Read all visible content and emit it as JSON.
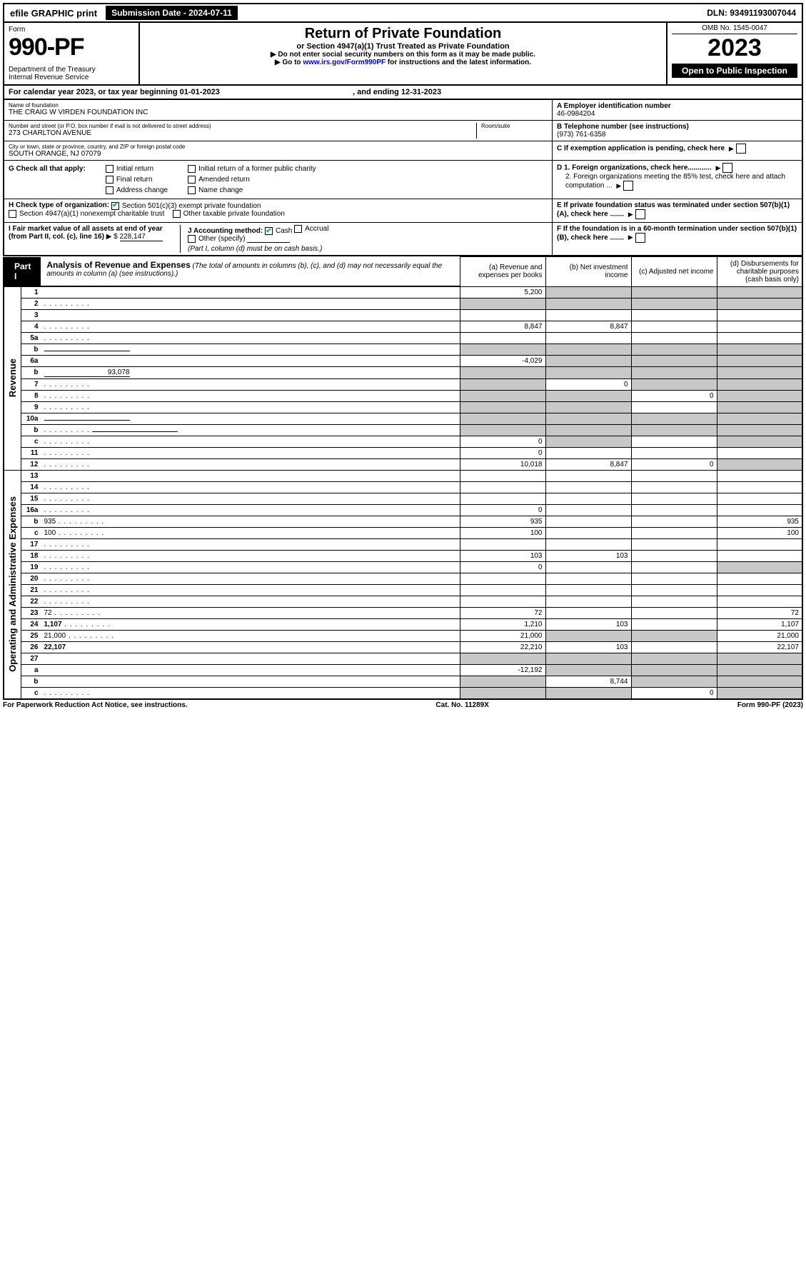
{
  "top": {
    "efile": "efile GRAPHIC print",
    "sub_date": "Submission Date - 2024-07-11",
    "dln": "DLN: 93491193007044"
  },
  "hdr": {
    "form_label": "Form",
    "form_num": "990-PF",
    "dept": "Department of the Treasury\nInternal Revenue Service",
    "title": "Return of Private Foundation",
    "subtitle": "or Section 4947(a)(1) Trust Treated as Private Foundation",
    "note1": "▶ Do not enter social security numbers on this form as it may be made public.",
    "note2": "▶ Go to www.irs.gov/Form990PF for instructions and the latest information.",
    "link": "www.irs.gov/Form990PF",
    "omb": "OMB No. 1545-0047",
    "year": "2023",
    "open": "Open to Public Inspection"
  },
  "cal": {
    "text": "For calendar year 2023, or tax year beginning 01-01-2023",
    "end": ", and ending 12-31-2023"
  },
  "info": {
    "name_label": "Name of foundation",
    "name": "THE CRAIG W VIRDEN FOUNDATION INC",
    "addr_label": "Number and street (or P.O. box number if mail is not delivered to street address)",
    "addr": "273 CHARLTON AVENUE",
    "room_label": "Room/suite",
    "city_label": "City or town, state or province, country, and ZIP or foreign postal code",
    "city": "SOUTH ORANGE, NJ 07079",
    "ein_label": "A Employer identification number",
    "ein": "46-0984204",
    "tel_label": "B Telephone number (see instructions)",
    "tel": "(973) 761-6358",
    "c_label": "C If exemption application is pending, check here",
    "d1": "D 1. Foreign organizations, check here............",
    "d2": "2. Foreign organizations meeting the 85% test, check here and attach computation ...",
    "e": "E If private foundation status was terminated under section 507(b)(1)(A), check here .......",
    "f": "F If the foundation is in a 60-month termination under section 507(b)(1)(B), check here .......",
    "g_label": "G Check all that apply:",
    "g_opts": [
      "Initial return",
      "Final return",
      "Address change",
      "Initial return of a former public charity",
      "Amended return",
      "Name change"
    ],
    "h_label": "H Check type of organization:",
    "h_opt1": "Section 501(c)(3) exempt private foundation",
    "h_opt2": "Section 4947(a)(1) nonexempt charitable trust",
    "h_opt3": "Other taxable private foundation",
    "i_label": "I Fair market value of all assets at end of year (from Part II, col. (c), line 16)",
    "i_val": "228,147",
    "j_label": "J Accounting method:",
    "j_cash": "Cash",
    "j_accrual": "Accrual",
    "j_other": "Other (specify)",
    "j_note": "(Part I, column (d) must be on cash basis.)"
  },
  "part1": {
    "tab": "Part I",
    "title": "Analysis of Revenue and Expenses",
    "title_note": "(The total of amounts in columns (b), (c), and (d) may not necessarily equal the amounts in column (a) (see instructions).)",
    "col_a": "(a) Revenue and expenses per books",
    "col_b": "(b) Net investment income",
    "col_c": "(c) Adjusted net income",
    "col_d": "(d) Disbursements for charitable purposes (cash basis only)",
    "side_rev": "Revenue",
    "side_exp": "Operating and Administrative Expenses"
  },
  "rows": [
    {
      "n": "1",
      "d": "",
      "a": "5,200",
      "b": "",
      "c": "",
      "sb": true,
      "sc": true,
      "sd": true
    },
    {
      "n": "2",
      "d": "",
      "a": "",
      "b": "",
      "c": "",
      "sa": true,
      "sb": true,
      "sc": true,
      "sd": true,
      "dots": true
    },
    {
      "n": "3",
      "d": "",
      "a": "",
      "b": "",
      "c": ""
    },
    {
      "n": "4",
      "d": "",
      "a": "8,847",
      "b": "8,847",
      "c": "",
      "dots": true
    },
    {
      "n": "5a",
      "d": "",
      "a": "",
      "b": "",
      "c": "",
      "dots": true
    },
    {
      "n": "b",
      "d": "",
      "a": "",
      "b": "",
      "c": "",
      "sa": true,
      "sb": true,
      "sc": true,
      "sd": true,
      "inline": true
    },
    {
      "n": "6a",
      "d": "",
      "a": "-4,029",
      "b": "",
      "c": "",
      "sb": true,
      "sc": true,
      "sd": true
    },
    {
      "n": "b",
      "d": "",
      "a": "",
      "b": "",
      "c": "",
      "sa": true,
      "sb": true,
      "sc": true,
      "sd": true,
      "inline": true,
      "inline_val": "93,078"
    },
    {
      "n": "7",
      "d": "",
      "a": "",
      "b": "0",
      "c": "",
      "sa": true,
      "sc": true,
      "sd": true,
      "dots": true
    },
    {
      "n": "8",
      "d": "",
      "a": "",
      "b": "",
      "c": "0",
      "sa": true,
      "sb": true,
      "sd": true,
      "dots": true
    },
    {
      "n": "9",
      "d": "",
      "a": "",
      "b": "",
      "c": "",
      "sa": true,
      "sb": true,
      "sd": true,
      "dots": true
    },
    {
      "n": "10a",
      "d": "",
      "a": "",
      "b": "",
      "c": "",
      "sa": true,
      "sb": true,
      "sc": true,
      "sd": true,
      "inline": true
    },
    {
      "n": "b",
      "d": "",
      "a": "",
      "b": "",
      "c": "",
      "sa": true,
      "sb": true,
      "sc": true,
      "sd": true,
      "inline": true,
      "dots": true
    },
    {
      "n": "c",
      "d": "",
      "a": "0",
      "b": "",
      "c": "",
      "sb": true,
      "sd": true,
      "dots": true
    },
    {
      "n": "11",
      "d": "",
      "a": "0",
      "b": "",
      "c": "",
      "dots": true
    },
    {
      "n": "12",
      "d": "",
      "a": "10,018",
      "b": "8,847",
      "c": "0",
      "bold": true,
      "sd": true,
      "dots": true
    },
    {
      "n": "13",
      "d": "",
      "a": "",
      "b": "",
      "c": ""
    },
    {
      "n": "14",
      "d": "",
      "a": "",
      "b": "",
      "c": "",
      "dots": true
    },
    {
      "n": "15",
      "d": "",
      "a": "",
      "b": "",
      "c": "",
      "dots": true
    },
    {
      "n": "16a",
      "d": "",
      "a": "0",
      "b": "",
      "c": "",
      "dots": true
    },
    {
      "n": "b",
      "d": "935",
      "a": "935",
      "b": "",
      "c": "",
      "dots": true
    },
    {
      "n": "c",
      "d": "100",
      "a": "100",
      "b": "",
      "c": "",
      "dots": true
    },
    {
      "n": "17",
      "d": "",
      "a": "",
      "b": "",
      "c": "",
      "dots": true
    },
    {
      "n": "18",
      "d": "",
      "a": "103",
      "b": "103",
      "c": "",
      "dots": true
    },
    {
      "n": "19",
      "d": "",
      "a": "0",
      "b": "",
      "c": "",
      "sd": true,
      "dots": true
    },
    {
      "n": "20",
      "d": "",
      "a": "",
      "b": "",
      "c": "",
      "dots": true
    },
    {
      "n": "21",
      "d": "",
      "a": "",
      "b": "",
      "c": "",
      "dots": true
    },
    {
      "n": "22",
      "d": "",
      "a": "",
      "b": "",
      "c": "",
      "dots": true
    },
    {
      "n": "23",
      "d": "72",
      "a": "72",
      "b": "",
      "c": "",
      "dots": true
    },
    {
      "n": "24",
      "d": "1,107",
      "a": "1,210",
      "b": "103",
      "c": "",
      "bold": true,
      "dots": true
    },
    {
      "n": "25",
      "d": "21,000",
      "a": "21,000",
      "b": "",
      "c": "",
      "sb": true,
      "sc": true,
      "dots": true
    },
    {
      "n": "26",
      "d": "22,107",
      "a": "22,210",
      "b": "103",
      "c": "",
      "bold": true
    },
    {
      "n": "27",
      "d": "",
      "a": "",
      "b": "",
      "c": "",
      "sa": true,
      "sb": true,
      "sc": true,
      "sd": true
    },
    {
      "n": "a",
      "d": "",
      "a": "-12,192",
      "b": "",
      "c": "",
      "bold": true,
      "sb": true,
      "sc": true,
      "sd": true
    },
    {
      "n": "b",
      "d": "",
      "a": "",
      "b": "8,744",
      "c": "",
      "bold": true,
      "sa": true,
      "sc": true,
      "sd": true
    },
    {
      "n": "c",
      "d": "",
      "a": "",
      "b": "",
      "c": "0",
      "bold": true,
      "sa": true,
      "sb": true,
      "sd": true,
      "dots": true
    }
  ],
  "footer": {
    "left": "For Paperwork Reduction Act Notice, see instructions.",
    "center": "Cat. No. 11289X",
    "right": "Form 990-PF (2023)"
  }
}
